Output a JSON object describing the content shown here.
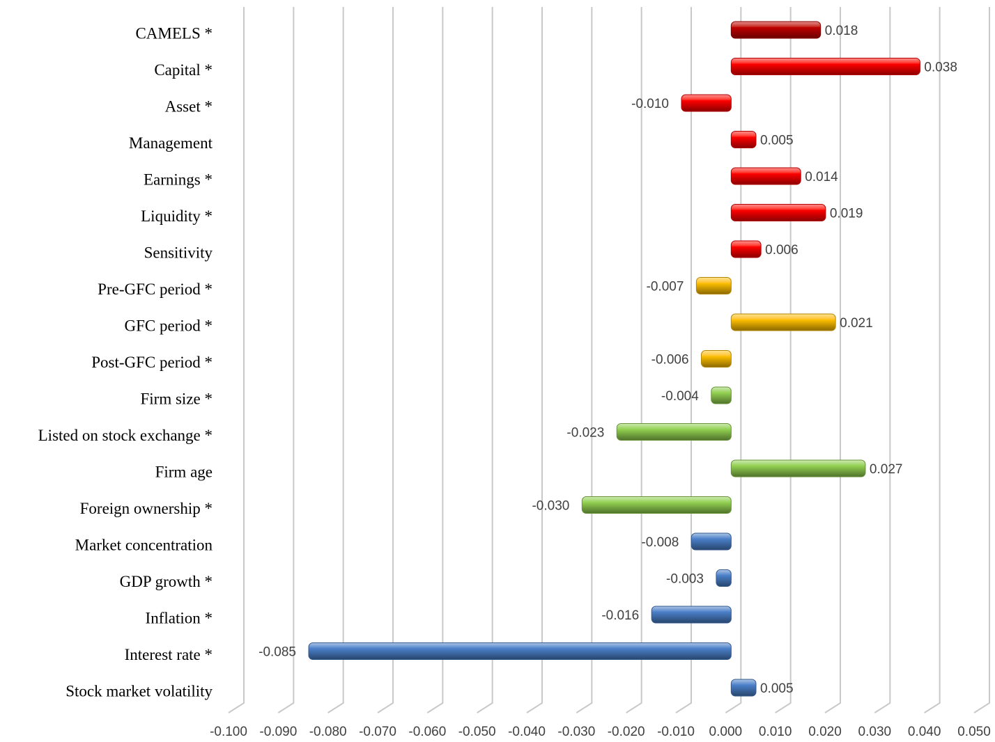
{
  "chart_data": {
    "type": "bar",
    "orientation": "horizontal",
    "categories": [
      "CAMELS *",
      "Capital *",
      "Asset *",
      "Management",
      "Earnings *",
      "Liquidity *",
      "Sensitivity",
      "Pre-GFC period *",
      "GFC period *",
      "Post-GFC period *",
      "Firm size *",
      "Listed on stock exchange *",
      "Firm age",
      "Foreign ownership *",
      "Market concentration",
      "GDP growth *",
      "Inflation *",
      "Interest rate *",
      "Stock market volatility"
    ],
    "values": [
      0.018,
      0.038,
      -0.01,
      0.005,
      0.014,
      0.019,
      0.006,
      -0.007,
      0.021,
      -0.006,
      -0.004,
      -0.023,
      0.027,
      -0.03,
      -0.008,
      -0.003,
      -0.016,
      -0.085,
      0.005
    ],
    "value_labels": [
      "0.018",
      "0.038",
      "-0.010",
      "0.005",
      "0.014",
      "0.019",
      "0.006",
      "-0.007",
      "0.021",
      "-0.006",
      "-0.004",
      "-0.023",
      "0.027",
      "-0.030",
      "-0.008",
      "-0.003",
      "-0.016",
      "-0.085",
      "0.005"
    ],
    "colors": [
      "#c00000",
      "#ff0000",
      "#ff0000",
      "#ff0000",
      "#ff0000",
      "#ff0000",
      "#ff0000",
      "#ffc000",
      "#ffc000",
      "#ffc000",
      "#92d050",
      "#92d050",
      "#92d050",
      "#92d050",
      "#4a7fc8",
      "#4a7fc8",
      "#4a7fc8",
      "#4a7fc8",
      "#4a7fc8"
    ],
    "xlim": [
      -0.1,
      0.05
    ],
    "xticks": [
      {
        "value": -0.1,
        "label": "-0.100"
      },
      {
        "value": -0.09,
        "label": "-0.090"
      },
      {
        "value": -0.08,
        "label": "-0.080"
      },
      {
        "value": -0.07,
        "label": "-0.070"
      },
      {
        "value": -0.06,
        "label": "-0.060"
      },
      {
        "value": -0.05,
        "label": "-0.050"
      },
      {
        "value": -0.04,
        "label": "-0.040"
      },
      {
        "value": -0.03,
        "label": "-0.030"
      },
      {
        "value": -0.02,
        "label": "-0.020"
      },
      {
        "value": -0.01,
        "label": "-0.010"
      },
      {
        "value": 0,
        "label": "0.000"
      },
      {
        "value": 0.01,
        "label": "0.010"
      },
      {
        "value": 0.02,
        "label": "0.020"
      },
      {
        "value": 0.03,
        "label": "0.030"
      },
      {
        "value": 0.04,
        "label": "0.040"
      },
      {
        "value": 0.05,
        "label": "0.050"
      }
    ],
    "grid": true
  }
}
